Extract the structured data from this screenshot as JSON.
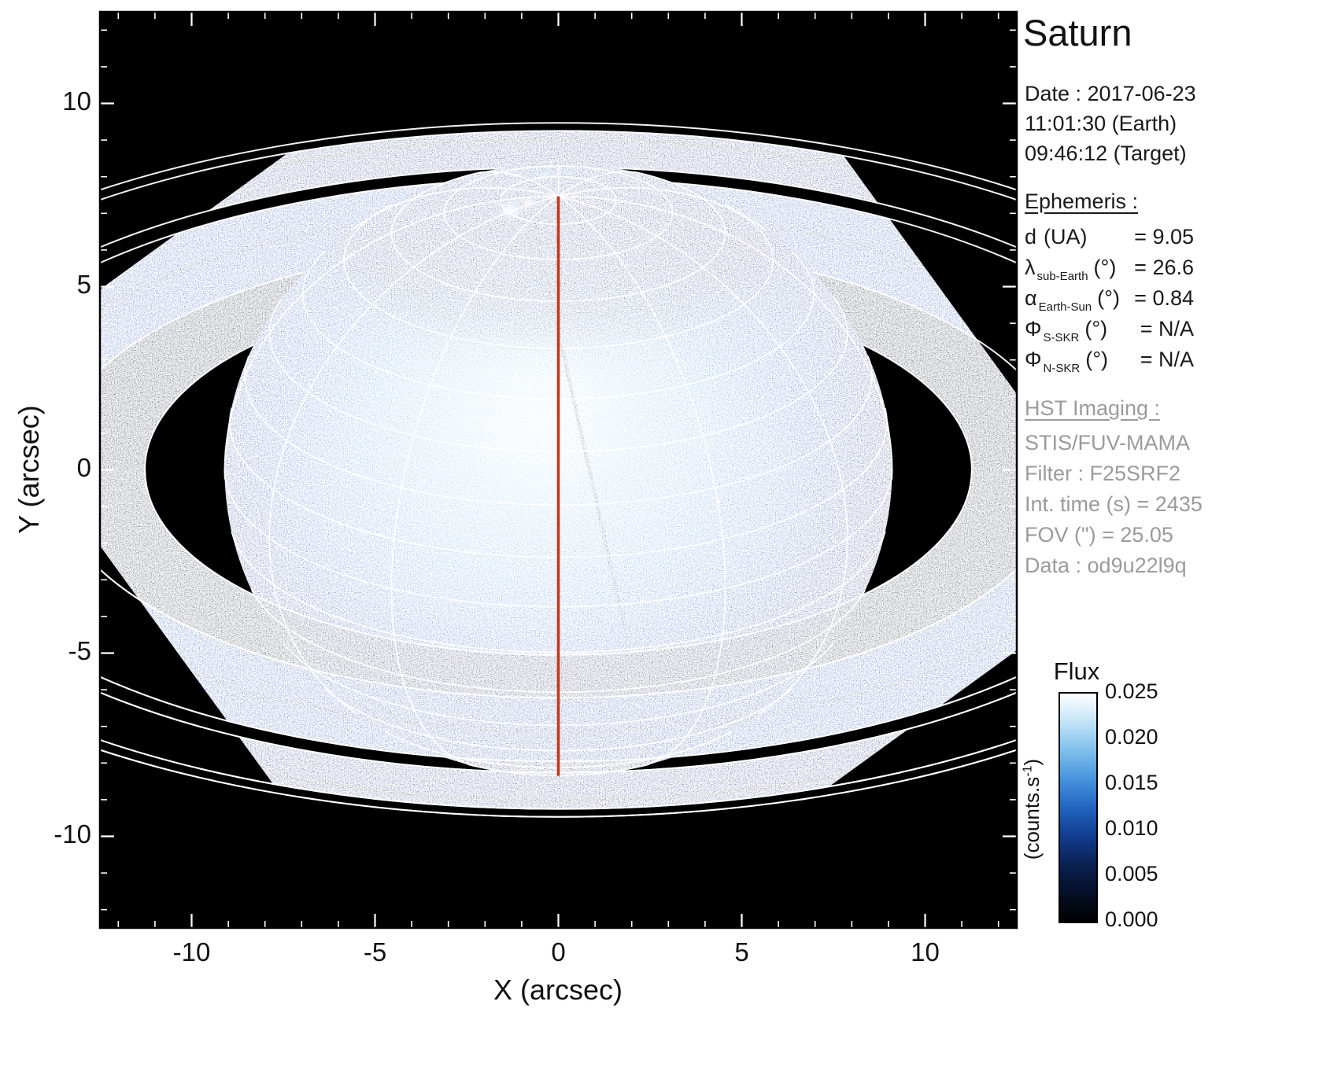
{
  "title": "Saturn",
  "observation": {
    "date_line": "Date : 2017-06-23",
    "time_earth": "11:01:30 (Earth)",
    "time_target": "09:46:12 (Target)"
  },
  "ephemeris": {
    "header": "Ephemeris :",
    "rows": [
      {
        "sym": "d",
        "sub": "",
        "unit": "(UA)",
        "value": "= 9.05"
      },
      {
        "sym": "λ",
        "sub": "sub-Earth",
        "unit": "(°)",
        "value": "= 26.6"
      },
      {
        "sym": "α",
        "sub": "Earth-Sun",
        "unit": "(°)",
        "value": "= 0.84"
      },
      {
        "sym": "Φ",
        "sub": "S-SKR",
        "unit": "(°)",
        "value": "= N/A"
      },
      {
        "sym": "Φ",
        "sub": "N-SKR",
        "unit": "(°)",
        "value": "= N/A"
      }
    ]
  },
  "hst": {
    "header": "HST Imaging :",
    "lines": [
      "STIS/FUV-MAMA",
      "Filter : F25SRF2",
      "Int. time (s) = 2435",
      "FOV (\") = 25.05",
      "Data : od9u22l9q"
    ]
  },
  "colorbar": {
    "title": "Flux",
    "unit_prefix": "(counts.s",
    "unit_sup": "-1",
    "unit_suffix": ")",
    "tick_labels": [
      "0.025",
      "0.020",
      "0.015",
      "0.010",
      "0.005",
      "0.000"
    ],
    "gradient": [
      "#000000",
      "#050f26",
      "#0a2152",
      "#123c8e",
      "#2265c0",
      "#4694dc",
      "#7fc0ec",
      "#c2e3f7",
      "#ffffff"
    ]
  },
  "chart_data": {
    "type": "heatmap",
    "title": "Saturn",
    "description": "HST far-ultraviolet image of Saturn with planetocentric lat-lon grid, ring boundary ellipses and red central meridian overlay",
    "xlabel": "X (arcsec)",
    "ylabel": "Y (arcsec)",
    "xlim": [
      -12.5,
      12.5
    ],
    "ylim": [
      -12.5,
      12.5
    ],
    "xticks": [
      -10,
      -5,
      0,
      5,
      10
    ],
    "yticks": [
      -10,
      -5,
      0,
      5,
      10
    ],
    "flux_min": 0.0,
    "flux_max": 0.025,
    "background": "#000000",
    "planet": {
      "center_arcsec": [
        0,
        0
      ],
      "equatorial_radius_arcsec": 9.1,
      "polar_radius_arcsec": 8.35,
      "sub_earth_latitude_deg": 26.6,
      "grid_lat_step_deg": 10,
      "grid_lon_step_deg": 30,
      "grid_color": "#ffffff",
      "central_meridian_color": "#c0391e"
    },
    "rings_radii_planet_radii": {
      "c_inner": 1.239,
      "b_inner": 1.527,
      "b_outer": 1.951,
      "a_inner": 2.027,
      "a_outer": 2.27,
      "f_ring": 2.324
    },
    "ring_band_colors": {
      "c": "#0d2c60",
      "b": "#2e74cc",
      "a": "#1e55a6"
    },
    "aperture_rotation_deg": -36
  }
}
